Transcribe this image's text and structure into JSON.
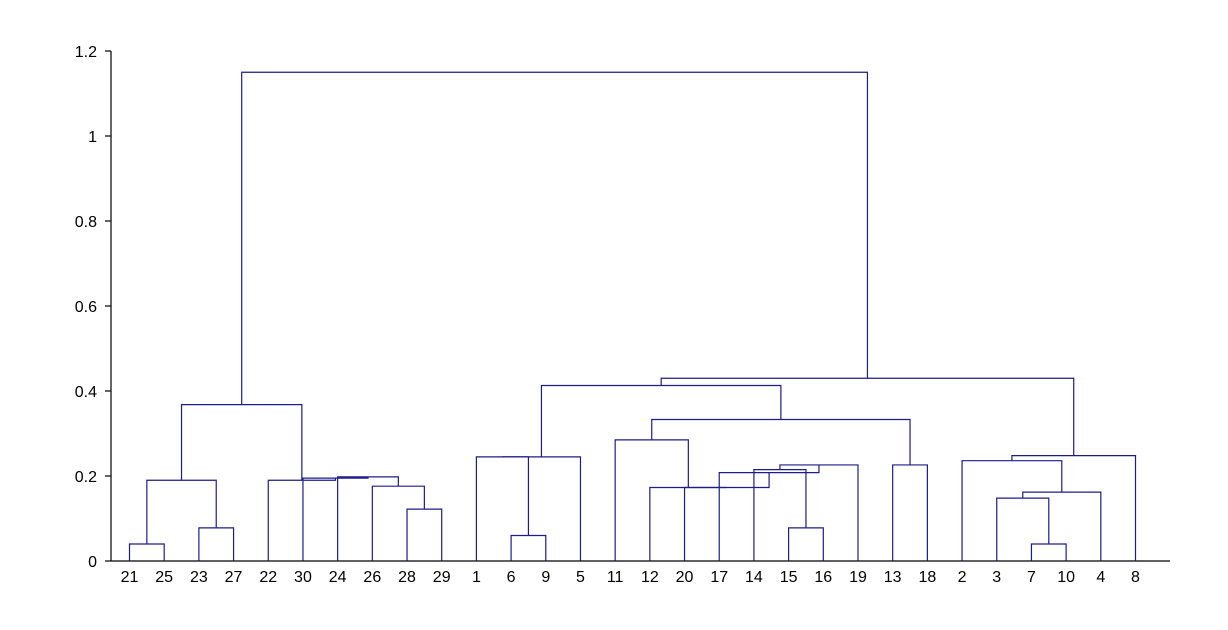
{
  "chart_data": {
    "type": "dendrogram",
    "title": "",
    "xlabel": "",
    "ylabel": "",
    "ylim": [
      0,
      1.2
    ],
    "yticks": [
      "0",
      "0.2",
      "0.4",
      "0.6",
      "0.8",
      "1",
      "1.2"
    ],
    "leaf_order": [
      "21",
      "25",
      "23",
      "27",
      "22",
      "30",
      "24",
      "26",
      "28",
      "29",
      "1",
      "6",
      "9",
      "5",
      "11",
      "12",
      "20",
      "17",
      "14",
      "15",
      "16",
      "19",
      "13",
      "18",
      "2",
      "3",
      "7",
      "10",
      "4",
      "8"
    ],
    "merges": [
      {
        "id": "L1",
        "left": "21",
        "right": "25",
        "height": 0.04
      },
      {
        "id": "L2",
        "left": "23",
        "right": "27",
        "height": 0.078
      },
      {
        "id": "L3",
        "left": "L1",
        "right": "L2",
        "height": 0.19
      },
      {
        "id": "L4",
        "left": "28",
        "right": "29",
        "height": 0.122
      },
      {
        "id": "L5",
        "left": "26",
        "right": "L4",
        "height": 0.176
      },
      {
        "id": "L6",
        "left": "24",
        "right": "L5",
        "height": 0.198
      },
      {
        "id": "L7",
        "left": "30",
        "right": "L6",
        "height": 0.195
      },
      {
        "id": "L8",
        "left": "22",
        "right": "L7",
        "height": 0.19
      },
      {
        "id": "L9",
        "left": "L3",
        "right": "L8",
        "height": 0.368
      },
      {
        "id": "M1",
        "left": "6",
        "right": "9",
        "height": 0.06
      },
      {
        "id": "M2",
        "left": "1",
        "right": "M1",
        "height": 0.245
      },
      {
        "id": "M3",
        "left": "M2",
        "right": "5",
        "height": 0.245
      },
      {
        "id": "M4",
        "left": "15",
        "right": "16",
        "height": 0.078
      },
      {
        "id": "M5",
        "left": "14",
        "right": "M4",
        "height": 0.215
      },
      {
        "id": "M6",
        "left": "M5",
        "right": "19",
        "height": 0.226
      },
      {
        "id": "M7",
        "left": "17",
        "right": "M6",
        "height": 0.208
      },
      {
        "id": "M8",
        "left": "20",
        "right": "M7",
        "height": 0.173
      },
      {
        "id": "M9",
        "left": "12",
        "right": "M8",
        "height": 0.173
      },
      {
        "id": "M10",
        "left": "11",
        "right": "M9",
        "height": 0.285
      },
      {
        "id": "M11",
        "left": "13",
        "right": "18",
        "height": 0.226
      },
      {
        "id": "M12",
        "left": "M10",
        "right": "M11",
        "height": 0.333
      },
      {
        "id": "M13",
        "left": "M3",
        "right": "M12",
        "height": 0.413
      },
      {
        "id": "R1",
        "left": "7",
        "right": "10",
        "height": 0.04
      },
      {
        "id": "R2",
        "left": "3",
        "right": "R1",
        "height": 0.148
      },
      {
        "id": "R3",
        "left": "R2",
        "right": "4",
        "height": 0.162
      },
      {
        "id": "R4",
        "left": "2",
        "right": "R3",
        "height": 0.236
      },
      {
        "id": "R5",
        "left": "R4",
        "right": "8",
        "height": 0.248
      },
      {
        "id": "M14",
        "left": "M13",
        "right": "R5",
        "height": 0.43
      },
      {
        "id": "ROOT",
        "left": "L9",
        "right": "M14",
        "height": 1.15
      }
    ],
    "colors": {
      "line": "#1c1c8c",
      "axis": "#000000"
    },
    "grid": false
  }
}
